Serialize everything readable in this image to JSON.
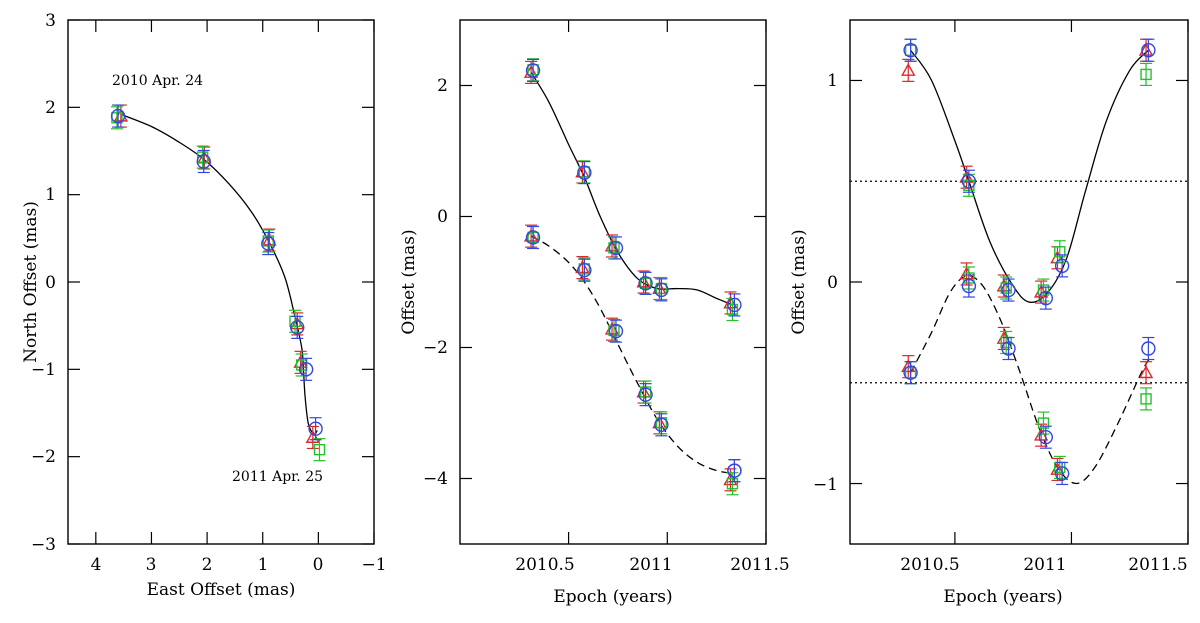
{
  "colors": {
    "triangle": "#e0262b",
    "square": "#22c22a",
    "circle": "#3346e0",
    "axis": "#000000"
  },
  "chart_data": [
    {
      "type": "scatter",
      "xlabel": "East Offset (mas)",
      "ylabel": "North Offset (mas)",
      "xlim": [
        4.5,
        -1
      ],
      "ylim": [
        -3,
        3
      ],
      "xticks": [
        "4",
        "3",
        "2",
        "1",
        "0",
        "−1"
      ],
      "yticks": [
        "−3",
        "−2",
        "−1",
        "0",
        "1",
        "2",
        "3"
      ],
      "annotations": [
        "2010 Apr. 24",
        "2011 Apr. 25"
      ],
      "fit": {
        "x": [
          3.55,
          3.0,
          2.5,
          2.05,
          1.6,
          1.2,
          0.88,
          0.6,
          0.42,
          0.3,
          0.27,
          0.24,
          0.18,
          0.08,
          0.02
        ],
        "y": [
          1.92,
          1.78,
          1.6,
          1.4,
          1.12,
          0.8,
          0.45,
          0.05,
          -0.4,
          -0.75,
          -0.98,
          -1.3,
          -1.62,
          -1.74,
          -1.7
        ]
      },
      "series": [
        {
          "marker": "triangle",
          "x": [
            3.55,
            2.05,
            0.88,
            0.38,
            0.32,
            0.1
          ],
          "y": [
            1.9,
            1.42,
            0.48,
            -0.48,
            -0.92,
            -1.78
          ]
        },
        {
          "marker": "square",
          "x": [
            3.62,
            2.08,
            0.9,
            0.42,
            0.3,
            -0.02
          ],
          "y": [
            1.88,
            1.43,
            0.47,
            -0.45,
            -0.95,
            -1.92
          ]
        },
        {
          "marker": "circle",
          "x": [
            3.6,
            2.06,
            0.9,
            0.38,
            0.22,
            0.05
          ],
          "y": [
            1.9,
            1.38,
            0.44,
            -0.52,
            -1.0,
            -1.68
          ]
        }
      ]
    },
    {
      "type": "scatter",
      "xlabel": "Epoch (years)",
      "ylabel": "Offset (mas)",
      "xlim": [
        2009.95,
        2011.5
      ],
      "ylim": [
        -5,
        3
      ],
      "xticks": [
        "2010.5",
        "2011",
        "2011.5"
      ],
      "yticks": [
        "−4",
        "−2",
        "0",
        "2"
      ],
      "fit_solid": {
        "x": [
          2010.31,
          2010.4,
          2010.5,
          2010.58,
          2010.66,
          2010.75,
          2010.85,
          2010.95,
          2011.05,
          2011.15,
          2011.25,
          2011.33
        ],
        "y": [
          2.2,
          1.75,
          1.1,
          0.6,
          0.0,
          -0.55,
          -0.95,
          -1.1,
          -1.1,
          -1.12,
          -1.25,
          -1.35
        ]
      },
      "fit_dashed": {
        "x": [
          2010.31,
          2010.4,
          2010.5,
          2010.58,
          2010.66,
          2010.75,
          2010.85,
          2010.95,
          2011.05,
          2011.15,
          2011.25,
          2011.33
        ],
        "y": [
          -0.3,
          -0.45,
          -0.7,
          -1.0,
          -1.4,
          -1.95,
          -2.55,
          -3.1,
          -3.5,
          -3.75,
          -3.88,
          -3.92
        ]
      },
      "series": [
        {
          "marker": "triangle",
          "x": [
            2010.31,
            2010.57,
            2010.72,
            2010.88,
            2010.96,
            2011.32,
            2010.31,
            2010.57,
            2010.72,
            2010.88,
            2010.96,
            2011.32
          ],
          "y": [
            2.2,
            0.68,
            -0.45,
            -1.0,
            -1.1,
            -1.32,
            -0.3,
            -0.78,
            -1.72,
            -2.68,
            -3.15,
            -4.02
          ]
        },
        {
          "marker": "square",
          "x": [
            2010.32,
            2010.58,
            2010.73,
            2010.89,
            2010.97,
            2011.33,
            2010.32,
            2010.58,
            2010.73,
            2010.89,
            2010.97,
            2011.33
          ],
          "y": [
            2.24,
            0.68,
            -0.48,
            -1.02,
            -1.1,
            -1.42,
            -0.32,
            -0.8,
            -1.74,
            -2.68,
            -3.15,
            -4.08
          ]
        },
        {
          "marker": "circle",
          "x": [
            2010.32,
            2010.58,
            2010.74,
            2010.89,
            2010.97,
            2011.34,
            2010.32,
            2010.58,
            2010.74,
            2010.89,
            2010.97,
            2011.34,
            2011.34
          ],
          "y": [
            2.23,
            0.67,
            -0.48,
            -1.02,
            -1.12,
            -1.35,
            -0.32,
            -0.82,
            -1.75,
            -2.72,
            -3.18,
            -3.88,
            -3.88
          ]
        }
      ]
    },
    {
      "type": "scatter",
      "xlabel": "Epoch (years)",
      "ylabel": "Offset (mas)",
      "xlim": [
        2010.05,
        2011.5
      ],
      "ylim": [
        -1.3,
        1.3
      ],
      "xticks": [
        "2010.5",
        "2011",
        "2011.5"
      ],
      "yticks": [
        "−1",
        "0",
        "1"
      ],
      "hlines": [
        0.5,
        -0.5
      ],
      "fit_solid": {
        "x": [
          2010.31,
          2010.4,
          2010.5,
          2010.56,
          2010.65,
          2010.75,
          2010.82,
          2010.9,
          2010.98,
          2011.06,
          2011.15,
          2011.25,
          2011.33
        ],
        "y": [
          1.15,
          1.0,
          0.7,
          0.5,
          0.2,
          -0.02,
          -0.1,
          -0.05,
          0.12,
          0.45,
          0.8,
          1.05,
          1.15
        ]
      },
      "fit_dashed": {
        "x": [
          2010.31,
          2010.4,
          2010.48,
          2010.55,
          2010.62,
          2010.7,
          2010.78,
          2010.86,
          2010.94,
          2011.02,
          2011.1,
          2011.2,
          2011.3,
          2011.34
        ],
        "y": [
          -0.45,
          -0.25,
          -0.05,
          0.03,
          -0.02,
          -0.2,
          -0.45,
          -0.72,
          -0.92,
          -1.0,
          -0.92,
          -0.7,
          -0.45,
          -0.37
        ]
      },
      "series": [
        {
          "marker": "triangle",
          "x": [
            2010.3,
            2010.55,
            2010.71,
            2010.87,
            2010.94,
            2011.32,
            2010.3,
            2010.55,
            2010.71,
            2010.87,
            2010.94,
            2011.32
          ],
          "y": [
            1.05,
            0.52,
            -0.02,
            -0.05,
            0.12,
            1.15,
            -0.42,
            0.04,
            -0.28,
            -0.76,
            -0.93,
            -0.45
          ]
        },
        {
          "marker": "square",
          "x": [
            2010.31,
            2010.56,
            2010.72,
            2010.88,
            2010.95,
            2011.32,
            2010.31,
            2010.56,
            2010.72,
            2010.88,
            2010.95,
            2011.32
          ],
          "y": [
            1.15,
            0.48,
            -0.03,
            -0.04,
            0.15,
            1.03,
            -0.45,
            0.02,
            -0.3,
            -0.7,
            -0.92,
            -0.58
          ]
        },
        {
          "marker": "circle",
          "x": [
            2010.31,
            2010.56,
            2010.73,
            2010.89,
            2010.96,
            2011.33,
            2010.31,
            2010.56,
            2010.73,
            2010.89,
            2010.96,
            2011.33
          ],
          "y": [
            1.15,
            0.5,
            -0.04,
            -0.08,
            0.08,
            1.15,
            -0.45,
            -0.02,
            -0.33,
            -0.77,
            -0.95,
            -0.33
          ]
        }
      ]
    }
  ]
}
